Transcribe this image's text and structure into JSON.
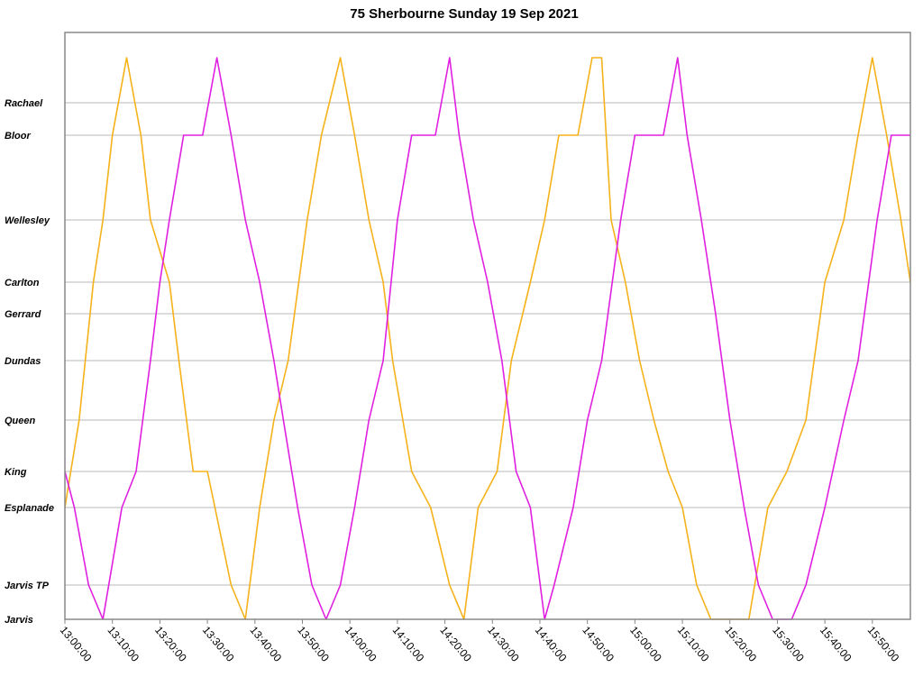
{
  "chart_data": {
    "type": "line",
    "title": "75 Sherbourne Sunday 19 Sep 2021",
    "xlabel": "",
    "ylabel": "",
    "x_range": [
      "13:00:00",
      "15:58:00"
    ],
    "x_tick_labels": [
      "13:00:00",
      "13:10:00",
      "13:20:00",
      "13:30:00",
      "13:40:00",
      "13:50:00",
      "14:00:00",
      "14:10:00",
      "14:20:00",
      "14:30:00",
      "14:40:00",
      "14:50:00",
      "15:00:00",
      "15:10:00",
      "15:20:00",
      "15:30:00",
      "15:40:00",
      "15:50:00"
    ],
    "y_stops": [
      "Jarvis",
      "Jarvis TP",
      "Esplanade",
      "King",
      "Queen",
      "Dundas",
      "Gerrard",
      "Carlton",
      "Wellesley",
      "Bloor",
      "Rachael"
    ],
    "grid": true,
    "series": [
      {
        "color": "#f5b21a",
        "points": [
          [
            "13:00:00",
            "Esplanade"
          ],
          [
            "13:03:00",
            "Queen"
          ],
          [
            "13:06:00",
            "Carlton"
          ],
          [
            "13:08:00",
            "Wellesley"
          ],
          [
            "13:10:00",
            "Bloor"
          ],
          [
            "13:13:00",
            "Bloor+"
          ],
          [
            "13:16:00",
            "Bloor"
          ],
          [
            "13:18:00",
            "Wellesley"
          ],
          [
            "13:22:00",
            "Carlton"
          ],
          [
            "13:24:00",
            "Dundas"
          ],
          [
            "13:27:00",
            "King"
          ],
          [
            "13:30:00",
            "King"
          ],
          [
            "13:35:00",
            "Jarvis TP"
          ],
          [
            "13:38:00",
            "Jarvis"
          ],
          [
            "13:41:00",
            "Esplanade"
          ],
          [
            "13:44:00",
            "Queen"
          ],
          [
            "13:47:00",
            "Dundas"
          ],
          [
            "13:51:00",
            "Wellesley"
          ],
          [
            "13:54:00",
            "Bloor"
          ],
          [
            "13:58:00",
            "Bloor+"
          ],
          [
            "14:01:00",
            "Bloor"
          ],
          [
            "14:04:00",
            "Wellesley"
          ],
          [
            "14:07:00",
            "Carlton"
          ],
          [
            "14:09:00",
            "Dundas"
          ],
          [
            "14:13:00",
            "King"
          ],
          [
            "14:17:00",
            "Esplanade"
          ],
          [
            "14:21:00",
            "Jarvis TP"
          ],
          [
            "14:24:00",
            "Jarvis"
          ],
          [
            "14:27:00",
            "Esplanade"
          ],
          [
            "14:31:00",
            "King"
          ],
          [
            "14:34:00",
            "Dundas"
          ],
          [
            "14:38:00",
            "Carlton"
          ],
          [
            "14:41:00",
            "Wellesley"
          ],
          [
            "14:44:00",
            "Bloor"
          ],
          [
            "14:48:00",
            "Bloor"
          ],
          [
            "14:51:00",
            "Bloor+"
          ],
          [
            "14:53:00",
            "Bloor+"
          ],
          [
            "14:55:00",
            "Wellesley"
          ],
          [
            "14:58:00",
            "Carlton"
          ],
          [
            "15:01:00",
            "Dundas"
          ],
          [
            "15:04:00",
            "Queen"
          ],
          [
            "15:07:00",
            "King"
          ],
          [
            "15:10:00",
            "Esplanade"
          ],
          [
            "15:13:00",
            "Jarvis TP"
          ],
          [
            "15:16:00",
            "Jarvis"
          ],
          [
            "15:24:00",
            "Jarvis"
          ],
          [
            "15:28:00",
            "Esplanade"
          ],
          [
            "15:32:00",
            "King"
          ],
          [
            "15:36:00",
            "Queen"
          ],
          [
            "15:40:00",
            "Carlton"
          ],
          [
            "15:44:00",
            "Wellesley"
          ],
          [
            "15:47:00",
            "Bloor"
          ],
          [
            "15:50:00",
            "Bloor+"
          ],
          [
            "15:53:00",
            "Bloor"
          ],
          [
            "15:56:00",
            "Wellesley"
          ],
          [
            "15:58:00",
            "Carlton"
          ]
        ]
      },
      {
        "color": "#e020e0",
        "points": [
          [
            "13:00:00",
            "King"
          ],
          [
            "13:02:00",
            "Esplanade"
          ],
          [
            "13:05:00",
            "Jarvis TP"
          ],
          [
            "13:08:00",
            "Jarvis"
          ],
          [
            "13:12:00",
            "Esplanade"
          ],
          [
            "13:15:00",
            "King"
          ],
          [
            "13:18:00",
            "Dundas"
          ],
          [
            "13:20:00",
            "Carlton"
          ],
          [
            "13:22:00",
            "Wellesley"
          ],
          [
            "13:25:00",
            "Bloor"
          ],
          [
            "13:29:00",
            "Bloor"
          ],
          [
            "13:32:00",
            "Bloor+"
          ],
          [
            "13:35:00",
            "Bloor"
          ],
          [
            "13:38:00",
            "Wellesley"
          ],
          [
            "13:41:00",
            "Carlton"
          ],
          [
            "13:44:00",
            "Dundas"
          ],
          [
            "13:46:00",
            "Queen"
          ],
          [
            "13:49:00",
            "Esplanade"
          ],
          [
            "13:52:00",
            "Jarvis TP"
          ],
          [
            "13:55:00",
            "Jarvis"
          ],
          [
            "13:58:00",
            "Jarvis TP"
          ],
          [
            "14:01:00",
            "Esplanade"
          ],
          [
            "14:04:00",
            "Queen"
          ],
          [
            "14:07:00",
            "Dundas"
          ],
          [
            "14:10:00",
            "Wellesley"
          ],
          [
            "14:13:00",
            "Bloor"
          ],
          [
            "14:18:00",
            "Bloor"
          ],
          [
            "14:21:00",
            "Bloor+"
          ],
          [
            "14:23:00",
            "Bloor"
          ],
          [
            "14:26:00",
            "Wellesley"
          ],
          [
            "14:29:00",
            "Carlton"
          ],
          [
            "14:32:00",
            "Dundas"
          ],
          [
            "14:35:00",
            "King"
          ],
          [
            "14:38:00",
            "Esplanade"
          ],
          [
            "14:41:00",
            "Jarvis"
          ],
          [
            "14:43:00",
            "Jarvis TP"
          ],
          [
            "14:47:00",
            "Esplanade"
          ],
          [
            "14:50:00",
            "Queen"
          ],
          [
            "14:53:00",
            "Dundas"
          ],
          [
            "14:57:00",
            "Wellesley"
          ],
          [
            "15:00:00",
            "Bloor"
          ],
          [
            "15:06:00",
            "Bloor"
          ],
          [
            "15:09:00",
            "Bloor+"
          ],
          [
            "15:11:00",
            "Bloor"
          ],
          [
            "15:14:00",
            "Wellesley"
          ],
          [
            "15:17:00",
            "Gerrard"
          ],
          [
            "15:20:00",
            "Queen"
          ],
          [
            "15:23:00",
            "Esplanade"
          ],
          [
            "15:26:00",
            "Jarvis TP"
          ],
          [
            "15:29:00",
            "Jarvis"
          ],
          [
            "15:33:00",
            "Jarvis"
          ],
          [
            "15:36:00",
            "Jarvis TP"
          ],
          [
            "15:40:00",
            "Esplanade"
          ],
          [
            "15:44:00",
            "Queen"
          ],
          [
            "15:47:00",
            "Dundas"
          ],
          [
            "15:51:00",
            "Wellesley"
          ],
          [
            "15:54:00",
            "Bloor"
          ],
          [
            "15:58:00",
            "Bloor"
          ]
        ]
      }
    ]
  }
}
